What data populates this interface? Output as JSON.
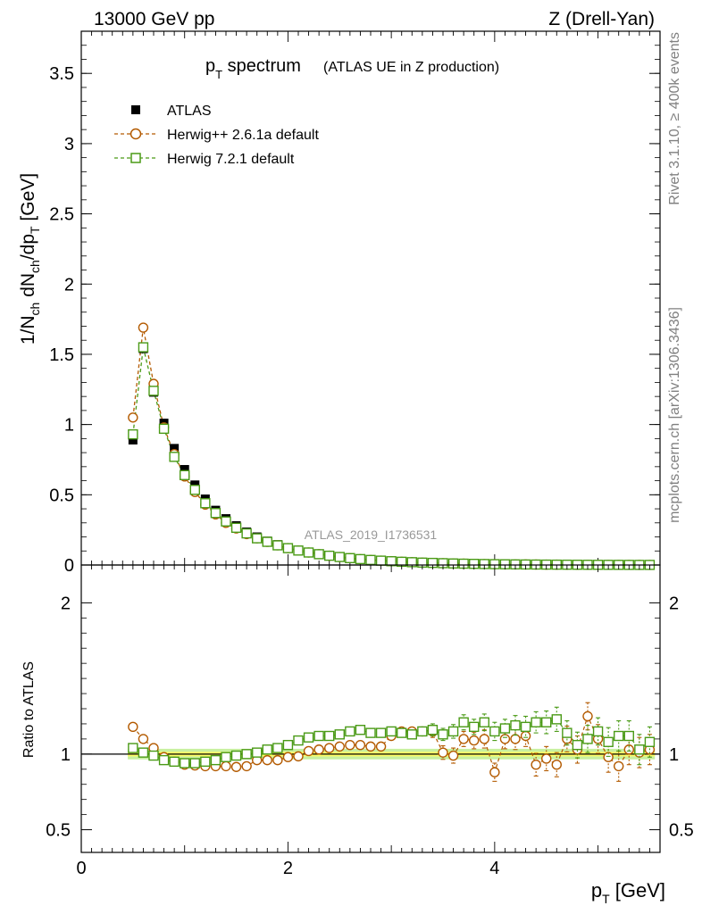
{
  "header": {
    "left": "13000 GeV pp",
    "right": "Z (Drell-Yan)"
  },
  "side_labels": {
    "rivet": "Rivet 3.1.10, ≥ 400k events",
    "mcplots": "mcplots.cern.ch [arXiv:1306.3436]"
  },
  "chart_data": [
    {
      "type": "line",
      "panel": "main",
      "title_main": "p",
      "title_sub": "T",
      "title_rest": " spectrum",
      "title_suffix": "(ATLAS UE in Z production)",
      "ylabel": "1/N_ch dN_ch/dp_T [GeV]",
      "ylim": [
        0,
        3.8
      ],
      "xlim": [
        0,
        5.6
      ],
      "yticks": [
        "0",
        "0.5",
        "1",
        "1.5",
        "2",
        "2.5",
        "3",
        "3.5"
      ],
      "watermark": "ATLAS_2019_I1736531",
      "legend": [
        {
          "label": "ATLAS",
          "marker": "square-filled",
          "color": "#000000"
        },
        {
          "label": "Herwig++ 2.6.1a default",
          "marker": "circle-open",
          "color": "#b35a00"
        },
        {
          "label": "Herwig 7.2.1 default",
          "marker": "square-open",
          "color": "#4a9a16"
        }
      ],
      "x": [
        0.5,
        0.6,
        0.7,
        0.8,
        0.9,
        1.0,
        1.1,
        1.2,
        1.3,
        1.4,
        1.5,
        1.6,
        1.7,
        1.8,
        1.9,
        2.0,
        2.1,
        2.2,
        2.3,
        2.4,
        2.5,
        2.6,
        2.7,
        2.8,
        2.9,
        3.0,
        3.1,
        3.2,
        3.3,
        3.4,
        3.5,
        3.6,
        3.7,
        3.8,
        3.9,
        4.0,
        4.1,
        4.2,
        4.3,
        4.4,
        4.5,
        4.6,
        4.7,
        4.8,
        4.9,
        5.0,
        5.1,
        5.2,
        5.3,
        5.4,
        5.5
      ],
      "series": [
        {
          "name": "ATLAS",
          "values": [
            0.89,
            1.54,
            1.23,
            1.01,
            0.83,
            0.68,
            0.57,
            0.47,
            0.39,
            0.33,
            0.28,
            0.235,
            0.2,
            0.17,
            0.145,
            0.123,
            0.105,
            0.09,
            0.077,
            0.066,
            0.057,
            0.049,
            0.042,
            0.036,
            0.031,
            0.027,
            0.023,
            0.02,
            0.017,
            0.015,
            0.013,
            0.011,
            0.0095,
            0.0082,
            0.007,
            0.006,
            0.0052,
            0.0045,
            0.0039,
            0.0034,
            0.0029,
            0.0025,
            0.0022,
            0.0019,
            0.0016,
            0.0014,
            0.0012,
            0.0011,
            0.0009,
            0.0008,
            0.0007
          ]
        },
        {
          "name": "Herwig++ 2.6.1a default",
          "values": [
            1.05,
            1.69,
            1.29,
            0.98,
            0.79,
            0.63,
            0.52,
            0.43,
            0.36,
            0.3,
            0.26,
            0.22,
            0.19,
            0.165,
            0.14,
            0.12,
            0.103,
            0.089,
            0.077,
            0.066,
            0.057,
            0.049,
            0.042,
            0.036,
            0.031,
            0.027,
            0.023,
            0.02,
            0.017,
            0.015,
            0.013,
            0.011,
            0.0095,
            0.0082,
            0.007,
            0.006,
            0.0052,
            0.0045,
            0.0039,
            0.0034,
            0.0029,
            0.0025,
            0.0022,
            0.0019,
            0.0016,
            0.0014,
            0.0012,
            0.0011,
            0.0009,
            0.0008,
            0.0007
          ]
        },
        {
          "name": "Herwig 7.2.1 default",
          "values": [
            0.93,
            1.55,
            1.24,
            0.97,
            0.77,
            0.64,
            0.535,
            0.44,
            0.37,
            0.31,
            0.265,
            0.225,
            0.19,
            0.165,
            0.14,
            0.12,
            0.103,
            0.089,
            0.077,
            0.066,
            0.057,
            0.049,
            0.042,
            0.036,
            0.031,
            0.027,
            0.023,
            0.02,
            0.017,
            0.015,
            0.013,
            0.011,
            0.0095,
            0.0082,
            0.007,
            0.006,
            0.0052,
            0.0045,
            0.0039,
            0.0034,
            0.0029,
            0.0025,
            0.0022,
            0.0019,
            0.0016,
            0.0014,
            0.0012,
            0.0011,
            0.0009,
            0.0008,
            0.0007
          ]
        }
      ]
    },
    {
      "type": "line",
      "panel": "ratio",
      "ylabel": "Ratio to ATLAS",
      "xlabel": "p_T [GeV]",
      "ylim": [
        0.35,
        2.25
      ],
      "xlim": [
        0,
        5.6
      ],
      "xticks": [
        "0",
        "2",
        "4"
      ],
      "yticks": [
        "0.5",
        "1",
        "2"
      ],
      "band": {
        "inner": [
          0.985,
          1.015
        ],
        "outer": [
          0.965,
          1.035
        ]
      },
      "x": [
        0.5,
        0.6,
        0.7,
        0.8,
        0.9,
        1.0,
        1.1,
        1.2,
        1.3,
        1.4,
        1.5,
        1.6,
        1.7,
        1.8,
        1.9,
        2.0,
        2.1,
        2.2,
        2.3,
        2.4,
        2.5,
        2.6,
        2.7,
        2.8,
        2.9,
        3.0,
        3.1,
        3.2,
        3.3,
        3.4,
        3.5,
        3.6,
        3.7,
        3.8,
        3.9,
        4.0,
        4.1,
        4.2,
        4.3,
        4.4,
        4.5,
        4.6,
        4.7,
        4.8,
        4.9,
        5.0,
        5.1,
        5.2,
        5.3,
        5.4,
        5.5
      ],
      "series": [
        {
          "name": "Herwig++ 2.6.1a default",
          "values": [
            1.18,
            1.1,
            1.04,
            0.98,
            0.95,
            0.93,
            0.925,
            0.92,
            0.92,
            0.92,
            0.915,
            0.92,
            0.96,
            0.96,
            0.96,
            0.98,
            0.985,
            1.02,
            1.03,
            1.04,
            1.05,
            1.06,
            1.06,
            1.05,
            1.05,
            1.12,
            1.15,
            1.15,
            1.15,
            1.15,
            1.01,
            0.99,
            1.1,
            1.09,
            1.1,
            0.88,
            1.1,
            1.1,
            1.12,
            0.93,
            0.97,
            0.93,
            1.1,
            1.03,
            1.25,
            1.1,
            0.98,
            0.92,
            1.03,
            1.01,
            1.03
          ],
          "errors": [
            0.01,
            0.01,
            0.01,
            0.01,
            0.01,
            0.01,
            0.01,
            0.01,
            0.01,
            0.01,
            0.01,
            0.01,
            0.01,
            0.01,
            0.01,
            0.015,
            0.015,
            0.015,
            0.015,
            0.02,
            0.02,
            0.02,
            0.02,
            0.025,
            0.025,
            0.03,
            0.03,
            0.03,
            0.035,
            0.04,
            0.045,
            0.05,
            0.05,
            0.055,
            0.06,
            0.06,
            0.065,
            0.07,
            0.07,
            0.075,
            0.08,
            0.08,
            0.085,
            0.09,
            0.09,
            0.095,
            0.1,
            0.1,
            0.1,
            0.1,
            0.1
          ]
        },
        {
          "name": "Herwig 7.2.1 default",
          "values": [
            1.04,
            1.01,
            0.99,
            0.96,
            0.95,
            0.94,
            0.94,
            0.95,
            0.96,
            0.98,
            0.99,
            1.0,
            1.01,
            1.03,
            1.04,
            1.06,
            1.09,
            1.11,
            1.12,
            1.12,
            1.13,
            1.15,
            1.16,
            1.14,
            1.14,
            1.15,
            1.14,
            1.13,
            1.15,
            1.16,
            1.13,
            1.15,
            1.21,
            1.18,
            1.21,
            1.15,
            1.17,
            1.19,
            1.18,
            1.21,
            1.21,
            1.23,
            1.14,
            1.06,
            1.1,
            1.15,
            1.08,
            1.12,
            1.12,
            1.03,
            1.08
          ],
          "errors": [
            0.01,
            0.01,
            0.01,
            0.01,
            0.01,
            0.01,
            0.01,
            0.01,
            0.01,
            0.01,
            0.01,
            0.01,
            0.01,
            0.01,
            0.015,
            0.015,
            0.015,
            0.015,
            0.02,
            0.02,
            0.02,
            0.02,
            0.025,
            0.025,
            0.025,
            0.03,
            0.03,
            0.03,
            0.035,
            0.04,
            0.04,
            0.045,
            0.05,
            0.05,
            0.055,
            0.06,
            0.06,
            0.065,
            0.07,
            0.07,
            0.075,
            0.08,
            0.08,
            0.085,
            0.09,
            0.09,
            0.095,
            0.1,
            0.1,
            0.1,
            0.1
          ]
        }
      ]
    }
  ],
  "colors": {
    "atlas": "#000000",
    "herwigpp": "#b35a00",
    "herwig7": "#4a9a16",
    "band_inner": "#ffff66",
    "band_outer": "#c8f0a0",
    "side_text": "#808080"
  }
}
